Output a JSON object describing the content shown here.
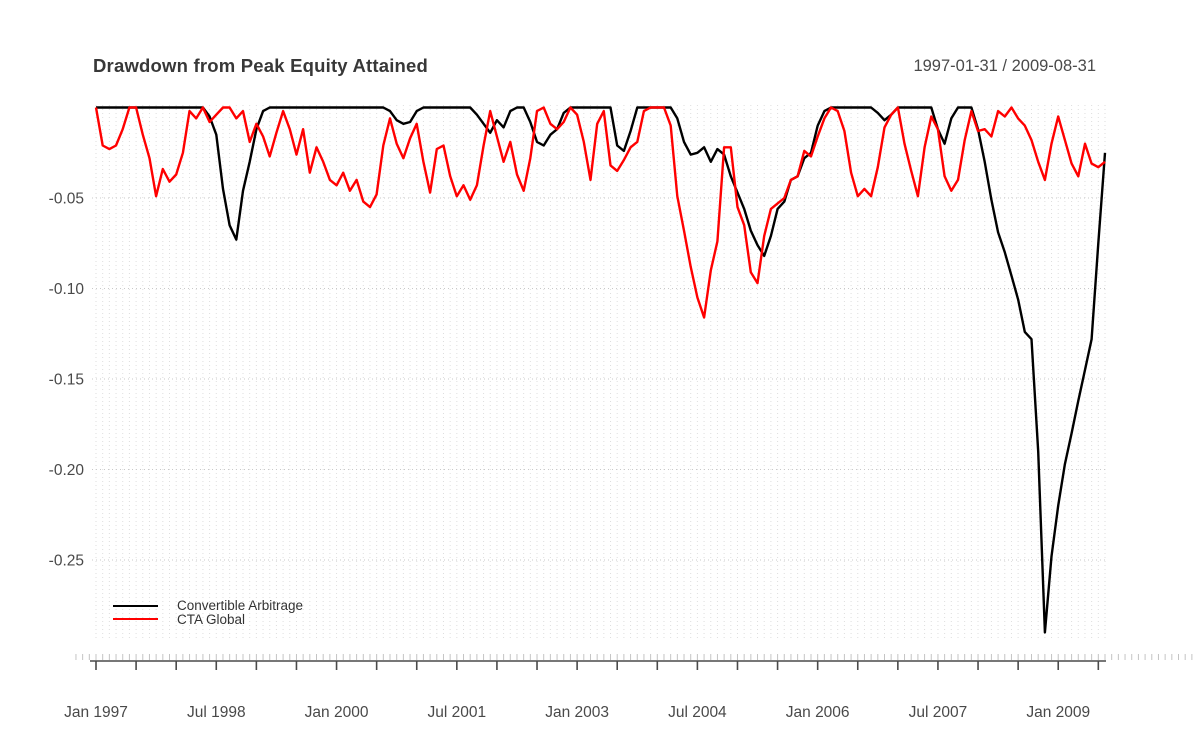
{
  "header": {
    "title": "Drawdown from Peak Equity Attained",
    "date_range": "1997-01-31 / 2009-08-31"
  },
  "legend": {
    "items": [
      {
        "label": "Convertible Arbitrage",
        "color": "#000000"
      },
      {
        "label": "CTA Global",
        "color": "#ff0000"
      }
    ]
  },
  "chart_data": {
    "type": "line",
    "title": "Drawdown from Peak Equity Attained",
    "subtitle": "1997-01-31 / 2009-08-31",
    "frequency": "monthly",
    "x_start": "1997-01",
    "x_end": "2009-08",
    "x_tick_labels": [
      "Jan 1997",
      "Jul 1998",
      "Jan 2000",
      "Jul 2001",
      "Jan 2003",
      "Jul 2004",
      "Jan 2006",
      "Jul 2007",
      "Jan 2009"
    ],
    "x_label_every_months": 18,
    "x_major_tick_every_months": 6,
    "x_minor_tick_every_months": 1,
    "y_ticks": [
      -0.05,
      -0.1,
      -0.15,
      -0.2,
      -0.25
    ],
    "y_tick_labels": [
      "-0.05",
      "-0.10",
      "-0.15",
      "-0.20",
      "-0.25"
    ],
    "ylim": [
      -0.295,
      0.002
    ],
    "grid": true,
    "legend_position": "bottom-left",
    "colors": {
      "grid_vertical": "#dedede",
      "grid_horizontal": "#c9c9c9",
      "axis": "#4a4a4a",
      "minor_tick": "#c4c4c4"
    },
    "series": [
      {
        "name": "Convertible Arbitrage",
        "color": "#000000",
        "values": [
          0,
          0,
          0,
          0,
          0,
          0,
          0,
          0,
          0,
          0,
          0,
          0,
          0,
          0,
          0,
          0,
          0,
          -0.005,
          -0.015,
          -0.045,
          -0.065,
          -0.073,
          -0.046,
          -0.03,
          -0.012,
          -0.002,
          0,
          0,
          0,
          0,
          0,
          0,
          0,
          0,
          0,
          0,
          0,
          0,
          0,
          0,
          0,
          0,
          0,
          0,
          -0.002,
          -0.007,
          -0.009,
          -0.008,
          -0.002,
          0,
          0,
          0,
          0,
          0,
          0,
          0,
          0,
          -0.004,
          -0.009,
          -0.014,
          -0.007,
          -0.011,
          -0.002,
          0,
          0,
          -0.008,
          -0.019,
          -0.021,
          -0.015,
          -0.012,
          -0.003,
          0,
          0,
          0,
          0,
          0,
          0,
          0,
          -0.021,
          -0.024,
          -0.013,
          0,
          0,
          0,
          0,
          0,
          0,
          -0.006,
          -0.019,
          -0.026,
          -0.025,
          -0.022,
          -0.03,
          -0.023,
          -0.026,
          -0.038,
          -0.047,
          -0.056,
          -0.068,
          -0.076,
          -0.082,
          -0.071,
          -0.056,
          -0.052,
          -0.04,
          -0.038,
          -0.028,
          -0.025,
          -0.01,
          -0.002,
          0,
          0,
          0,
          0,
          0,
          0,
          0,
          -0.003,
          -0.007,
          -0.004,
          0,
          0,
          0,
          0,
          0,
          0,
          -0.012,
          -0.02,
          -0.006,
          0,
          0,
          0,
          -0.012,
          -0.03,
          -0.051,
          -0.069,
          -0.08,
          -0.093,
          -0.106,
          -0.124,
          -0.128,
          -0.19,
          -0.29,
          -0.248,
          -0.22,
          -0.197,
          -0.18,
          -0.162,
          -0.145,
          -0.128,
          -0.075,
          -0.025
        ]
      },
      {
        "name": "CTA Global",
        "color": "#ff0000",
        "values": [
          0,
          -0.021,
          -0.023,
          -0.021,
          -0.012,
          0,
          0,
          -0.015,
          -0.028,
          -0.049,
          -0.034,
          -0.041,
          -0.037,
          -0.025,
          -0.002,
          -0.006,
          0,
          -0.008,
          -0.004,
          0,
          0,
          -0.006,
          -0.002,
          -0.019,
          -0.009,
          -0.016,
          -0.027,
          -0.014,
          -0.002,
          -0.012,
          -0.026,
          -0.012,
          -0.036,
          -0.022,
          -0.03,
          -0.04,
          -0.043,
          -0.036,
          -0.046,
          -0.04,
          -0.052,
          -0.055,
          -0.048,
          -0.021,
          -0.006,
          -0.02,
          -0.028,
          -0.017,
          -0.009,
          -0.03,
          -0.047,
          -0.023,
          -0.021,
          -0.038,
          -0.049,
          -0.043,
          -0.051,
          -0.043,
          -0.021,
          -0.002,
          -0.016,
          -0.03,
          -0.019,
          -0.037,
          -0.046,
          -0.028,
          -0.002,
          0,
          -0.009,
          -0.012,
          -0.008,
          0,
          -0.004,
          -0.019,
          -0.04,
          -0.009,
          -0.002,
          -0.032,
          -0.035,
          -0.029,
          -0.022,
          -0.019,
          -0.002,
          0,
          0,
          0,
          -0.01,
          -0.049,
          -0.068,
          -0.088,
          -0.105,
          -0.116,
          -0.09,
          -0.074,
          -0.022,
          -0.022,
          -0.055,
          -0.065,
          -0.091,
          -0.097,
          -0.071,
          -0.056,
          -0.053,
          -0.05,
          -0.04,
          -0.038,
          -0.024,
          -0.027,
          -0.016,
          -0.006,
          0,
          -0.002,
          -0.013,
          -0.036,
          -0.049,
          -0.045,
          -0.049,
          -0.033,
          -0.011,
          -0.004,
          0,
          -0.02,
          -0.035,
          -0.049,
          -0.022,
          -0.005,
          -0.012,
          -0.038,
          -0.046,
          -0.04,
          -0.018,
          -0.002,
          -0.013,
          -0.012,
          -0.016,
          -0.002,
          -0.005,
          0,
          -0.006,
          -0.01,
          -0.018,
          -0.03,
          -0.04,
          -0.02,
          -0.005,
          -0.018,
          -0.031,
          -0.038,
          -0.02,
          -0.031,
          -0.033,
          -0.03
        ]
      }
    ]
  }
}
